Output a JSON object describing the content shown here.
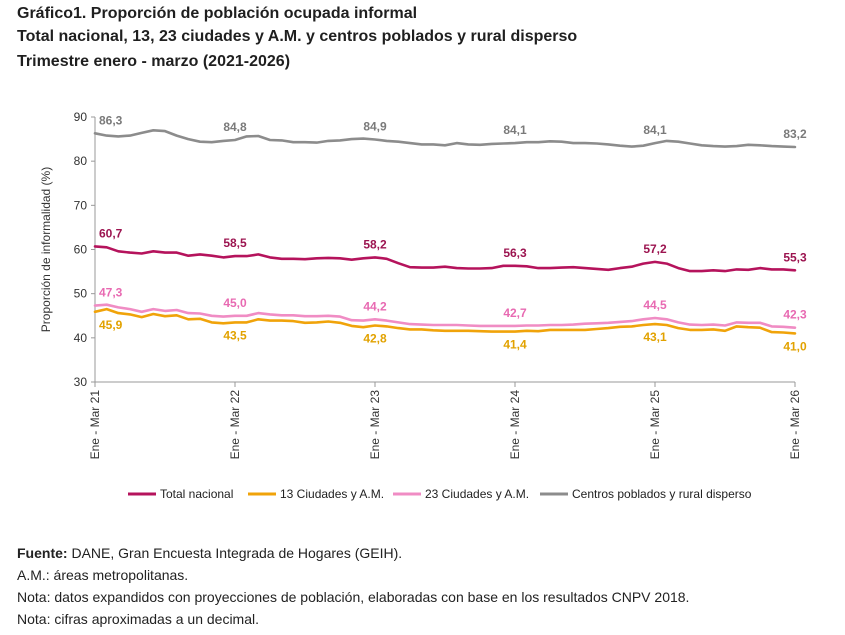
{
  "header": {
    "title": "Gráfico1. Proporción de población ocupada informal",
    "subtitle": "Total nacional, 13, 23 ciudades y A.M. y centros poblados y rural disperso",
    "period": "Trimestre enero - marzo (2021-2026)"
  },
  "footer": {
    "source_label": "Fuente:",
    "source_text": " DANE, Gran Encuesta Integrada de Hogares (GEIH).",
    "note_am": "A.M.: áreas metropolitanas.",
    "note_projection": "Nota: datos expandidos con proyecciones de población, elaboradas con base en los resultados CNPV 2018.",
    "note_rounding": "Nota: cifras aproximadas a un decimal."
  },
  "chart_data": {
    "type": "line",
    "title": "",
    "xlabel": "",
    "ylabel": "Proporción de informalidad (%)",
    "ylim": [
      30,
      90
    ],
    "yticks": [
      30,
      40,
      50,
      60,
      70,
      80,
      90
    ],
    "x_tick_labels": [
      "Ene - Mar 21",
      "Ene - Mar 22",
      "Ene - Mar 23",
      "Ene - Mar 24",
      "Ene - Mar 25",
      "Ene - Mar 26"
    ],
    "x_tick_positions": [
      0,
      12,
      24,
      36,
      48,
      60
    ],
    "grid": false,
    "legend": "bottom",
    "series": [
      {
        "name": "Total nacional",
        "color": "#b5135c",
        "label_color": "#9c1450",
        "values": [
          60.7,
          60.5,
          59.6,
          59.3,
          59.1,
          59.6,
          59.3,
          59.3,
          58.6,
          58.9,
          58.6,
          58.2,
          58.5,
          58.5,
          58.9,
          58.2,
          57.9,
          57.9,
          57.8,
          58.0,
          58.1,
          58.0,
          57.7,
          58.0,
          58.2,
          57.9,
          56.9,
          56.0,
          55.9,
          55.9,
          56.1,
          55.8,
          55.7,
          55.7,
          55.8,
          56.3,
          56.3,
          56.2,
          55.8,
          55.8,
          55.9,
          56.0,
          55.8,
          55.6,
          55.4,
          55.8,
          56.1,
          56.8,
          57.2,
          56.8,
          55.8,
          55.1,
          55.1,
          55.3,
          55.1,
          55.5,
          55.4,
          55.8,
          55.5,
          55.5,
          55.3
        ],
        "labels": [
          {
            "i": 0,
            "text": "60,7"
          },
          {
            "i": 12,
            "text": "58,5"
          },
          {
            "i": 24,
            "text": "58,2"
          },
          {
            "i": 36,
            "text": "56,3"
          },
          {
            "i": 48,
            "text": "57,2"
          },
          {
            "i": 60,
            "text": "55,3"
          }
        ]
      },
      {
        "name": "13 Ciudades y A.M.",
        "color": "#f0a30a",
        "label_color": "#e2a200",
        "values": [
          45.9,
          46.5,
          45.6,
          45.3,
          44.7,
          45.4,
          44.9,
          45.1,
          44.2,
          44.3,
          43.5,
          43.3,
          43.5,
          43.5,
          44.2,
          43.9,
          43.9,
          43.8,
          43.4,
          43.5,
          43.7,
          43.4,
          42.7,
          42.4,
          42.8,
          42.6,
          42.2,
          41.9,
          41.9,
          41.7,
          41.6,
          41.6,
          41.6,
          41.5,
          41.4,
          41.4,
          41.4,
          41.6,
          41.5,
          41.8,
          41.8,
          41.8,
          41.8,
          42.0,
          42.2,
          42.5,
          42.6,
          42.9,
          43.1,
          42.9,
          42.2,
          41.8,
          41.8,
          41.9,
          41.6,
          42.6,
          42.4,
          42.3,
          41.3,
          41.2,
          41.0
        ],
        "labels": [
          {
            "i": 0,
            "text": "45,9"
          },
          {
            "i": 12,
            "text": "43,5"
          },
          {
            "i": 24,
            "text": "42,8"
          },
          {
            "i": 36,
            "text": "41,4"
          },
          {
            "i": 48,
            "text": "43,1"
          },
          {
            "i": 60,
            "text": "41,0"
          }
        ]
      },
      {
        "name": "23 Ciudades y A.M.",
        "color": "#f08cc4",
        "label_color": "#e86ab2",
        "values": [
          47.3,
          47.5,
          46.9,
          46.5,
          45.9,
          46.5,
          46.1,
          46.3,
          45.6,
          45.5,
          45.0,
          44.8,
          45.0,
          45.0,
          45.6,
          45.3,
          45.1,
          45.1,
          44.9,
          44.9,
          45.0,
          44.8,
          44.0,
          43.9,
          44.2,
          43.9,
          43.5,
          43.1,
          43.0,
          42.9,
          42.9,
          42.9,
          42.8,
          42.7,
          42.7,
          42.7,
          42.7,
          42.8,
          42.8,
          42.9,
          42.9,
          43.0,
          43.2,
          43.3,
          43.4,
          43.6,
          43.8,
          44.2,
          44.5,
          44.2,
          43.5,
          43.0,
          42.9,
          43.0,
          42.8,
          43.5,
          43.4,
          43.4,
          42.6,
          42.5,
          42.3
        ],
        "labels": [
          {
            "i": 0,
            "text": "47,3"
          },
          {
            "i": 12,
            "text": "45,0"
          },
          {
            "i": 24,
            "text": "44,2"
          },
          {
            "i": 36,
            "text": "42,7"
          },
          {
            "i": 48,
            "text": "44,5"
          },
          {
            "i": 60,
            "text": "42,3"
          }
        ]
      },
      {
        "name": "Centros poblados y rural disperso",
        "color": "#8c8c8c",
        "label_color": "#7a7a7a",
        "values": [
          86.3,
          85.8,
          85.6,
          85.8,
          86.4,
          87.0,
          86.8,
          85.8,
          85.0,
          84.4,
          84.3,
          84.6,
          84.8,
          85.6,
          85.7,
          84.8,
          84.7,
          84.3,
          84.3,
          84.2,
          84.6,
          84.7,
          85.0,
          85.1,
          84.9,
          84.6,
          84.4,
          84.1,
          83.8,
          83.8,
          83.6,
          84.1,
          83.8,
          83.7,
          83.9,
          84.0,
          84.1,
          84.3,
          84.3,
          84.5,
          84.4,
          84.1,
          84.1,
          84.0,
          83.8,
          83.5,
          83.3,
          83.5,
          84.1,
          84.6,
          84.4,
          84.0,
          83.6,
          83.4,
          83.3,
          83.4,
          83.7,
          83.6,
          83.4,
          83.3,
          83.2
        ],
        "labels": [
          {
            "i": 0,
            "text": "86,3"
          },
          {
            "i": 12,
            "text": "84,8"
          },
          {
            "i": 24,
            "text": "84,9"
          },
          {
            "i": 36,
            "text": "84,1"
          },
          {
            "i": 48,
            "text": "84,1"
          },
          {
            "i": 60,
            "text": "83,2"
          }
        ]
      }
    ]
  }
}
